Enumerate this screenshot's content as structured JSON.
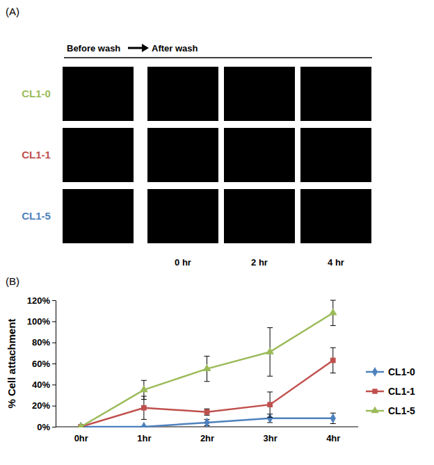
{
  "panel_a": {
    "label": "(A)",
    "before_label": "Before wash",
    "after_label": "After wash",
    "rows": [
      {
        "name": "CL1-0",
        "color": "#9bbb59"
      },
      {
        "name": "CL1-1",
        "color": "#c0504d"
      },
      {
        "name": "CL1-5",
        "color": "#4f81bd"
      }
    ],
    "columns": [
      "0 hr",
      "2 hr",
      "4 hr"
    ]
  },
  "chart_data": {
    "type": "line",
    "panel_label": "(B)",
    "y_label": "% Cell attachment",
    "categories": [
      "0hr",
      "1hr",
      "2hr",
      "3hr",
      "4hr"
    ],
    "series": [
      {
        "name": "CL1-0",
        "color": "#4f81bd",
        "marker": "diamond",
        "values": [
          0,
          0,
          4,
          8,
          8
        ],
        "errors": [
          0,
          0,
          3,
          4,
          5
        ]
      },
      {
        "name": "CL1-1",
        "color": "#c0504d",
        "marker": "square",
        "values": [
          0,
          18,
          14,
          21,
          63
        ],
        "errors": [
          0,
          11,
          3,
          12,
          12
        ]
      },
      {
        "name": "CL1-5",
        "color": "#9bbb59",
        "marker": "triangle",
        "values": [
          0,
          35,
          55,
          71,
          108
        ],
        "errors": [
          0,
          9,
          12,
          23,
          12
        ]
      }
    ],
    "ylim": [
      0,
      120
    ],
    "yticks": [
      {
        "value": 0,
        "label": "0%"
      },
      {
        "value": 20,
        "label": "20%"
      },
      {
        "value": 40,
        "label": "40%"
      },
      {
        "value": 60,
        "label": "60%"
      },
      {
        "value": 80,
        "label": "80%"
      },
      {
        "value": 100,
        "label": "100%"
      },
      {
        "value": 120,
        "label": "120%"
      }
    ],
    "grid": false,
    "legend": "right"
  }
}
